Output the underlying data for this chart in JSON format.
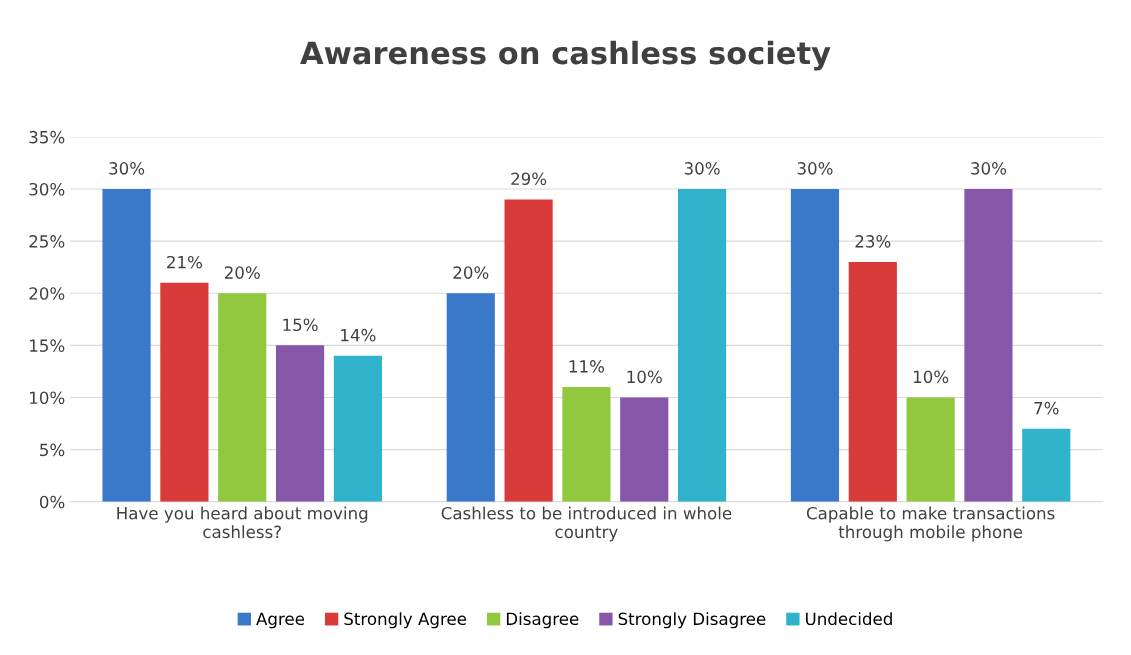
{
  "chart_data": {
    "type": "bar",
    "title": "Awareness on cashless society",
    "categories": [
      "Have you heard about moving\ncashless?",
      "Cashless to be introduced in whole\ncountry",
      "Capable to make transactions\nthrough mobile phone"
    ],
    "series": [
      {
        "name": "Agree",
        "color": "#3a78c9",
        "values": [
          30,
          20,
          30
        ],
        "value_labels": [
          "30%",
          "20%",
          "30%"
        ]
      },
      {
        "name": "Strongly Agree",
        "color": "#d93a3a",
        "values": [
          21,
          29,
          23
        ],
        "value_labels": [
          "21%",
          "29%",
          "23%"
        ]
      },
      {
        "name": "Disagree",
        "color": "#92c83e",
        "values": [
          20,
          11,
          10
        ],
        "value_labels": [
          "20%",
          "11%",
          "10%"
        ]
      },
      {
        "name": "Strongly Disagree",
        "color": "#8657a8",
        "values": [
          15,
          10,
          30
        ],
        "value_labels": [
          "15%",
          "10%",
          "30%"
        ]
      },
      {
        "name": "Undecided",
        "color": "#31b2cc",
        "values": [
          14,
          30,
          7
        ],
        "value_labels": [
          "14%",
          "30%",
          "7%"
        ]
      }
    ],
    "ylim": [
      0,
      35
    ],
    "yticks": [
      {
        "value": 0,
        "label": "0%"
      },
      {
        "value": 5,
        "label": "5%"
      },
      {
        "value": 10,
        "label": "10%"
      },
      {
        "value": 15,
        "label": "15%"
      },
      {
        "value": 20,
        "label": "20%"
      },
      {
        "value": 25,
        "label": "25%"
      },
      {
        "value": 30,
        "label": "30%"
      },
      {
        "value": 35,
        "label": "35%"
      }
    ],
    "grid": "y",
    "legend": "bottom"
  }
}
